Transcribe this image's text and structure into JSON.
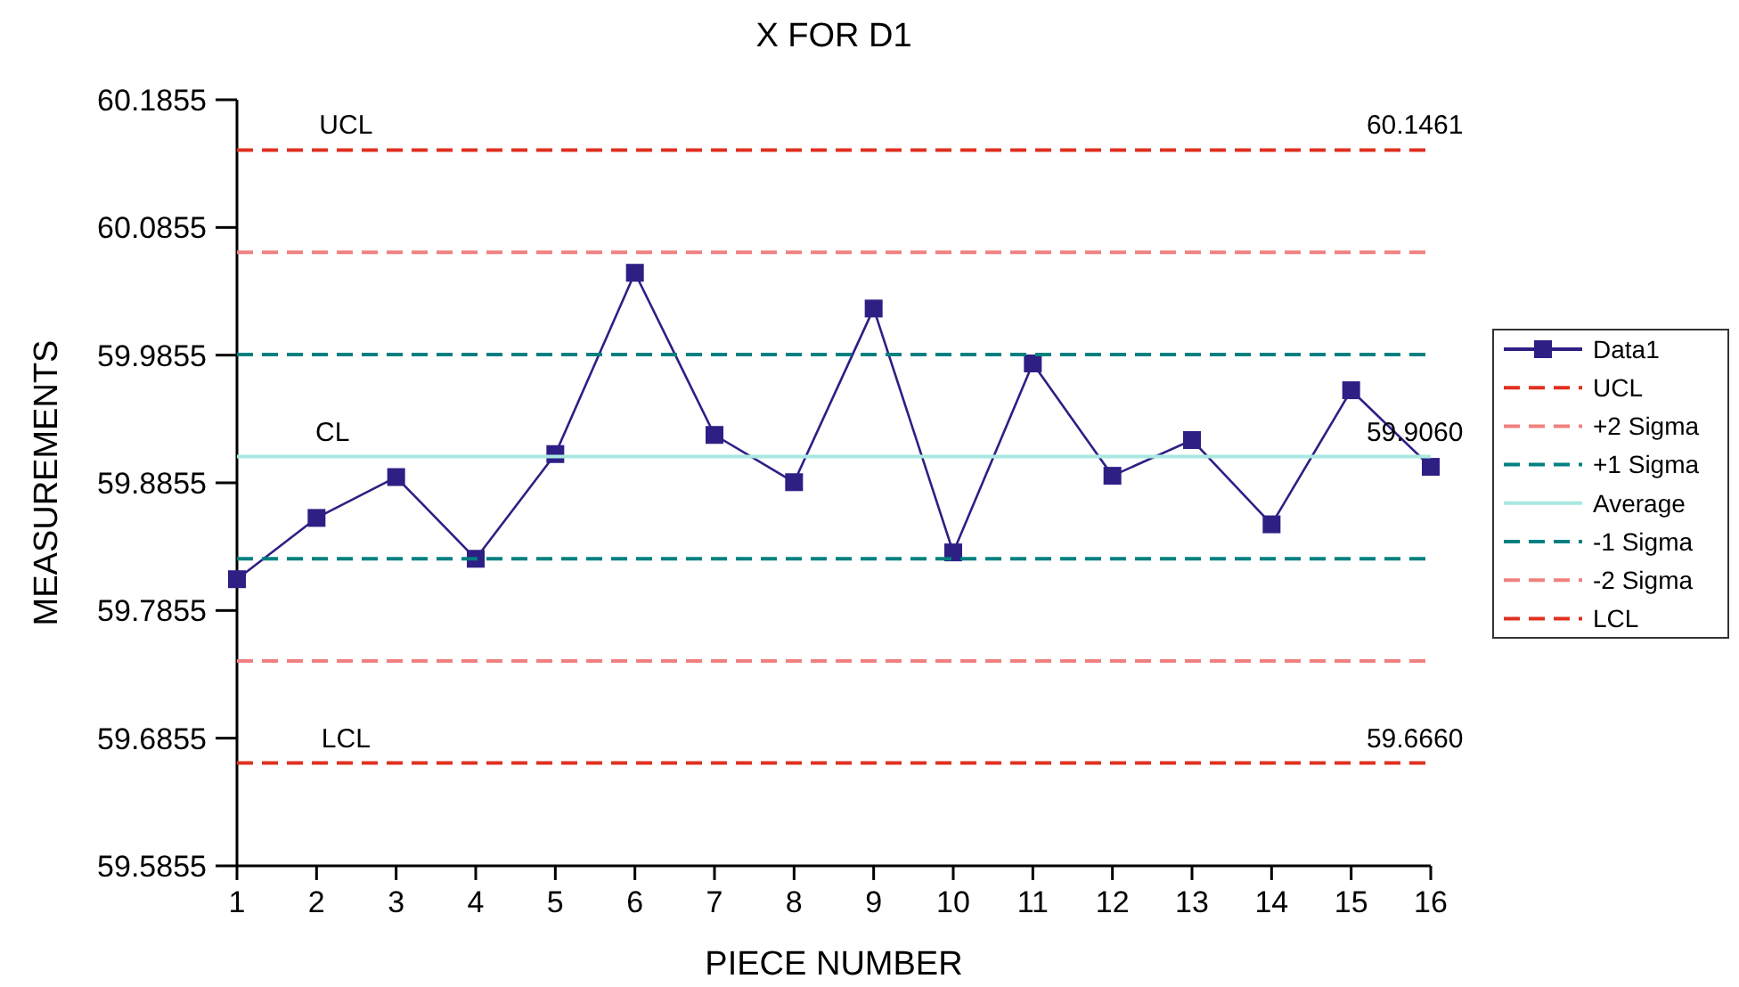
{
  "chart_data": {
    "type": "line",
    "title": "X FOR D1",
    "xlabel": "PIECE NUMBER",
    "ylabel": "MEASUREMENTS",
    "x": [
      1,
      2,
      3,
      4,
      5,
      6,
      7,
      8,
      9,
      10,
      11,
      12,
      13,
      14,
      15,
      16
    ],
    "xlim": [
      1,
      16
    ],
    "xticks": [
      1,
      2,
      3,
      4,
      5,
      6,
      7,
      8,
      9,
      10,
      11,
      12,
      13,
      14,
      15,
      16
    ],
    "ylim": [
      59.5855,
      60.1855
    ],
    "yticks": [
      59.5855,
      59.6855,
      59.7855,
      59.8855,
      59.9855,
      60.0855,
      60.1855
    ],
    "grid": false,
    "legend": "right",
    "series": [
      {
        "name": "Data1",
        "color": "#2e1f85",
        "marker": "square",
        "line_style": "solid",
        "values": [
          59.81,
          59.858,
          59.89,
          59.826,
          59.908,
          60.05,
          59.923,
          59.886,
          60.022,
          59.831,
          59.979,
          59.891,
          59.919,
          59.853,
          59.958,
          59.898
        ]
      },
      {
        "name": "UCL",
        "color": "#e03020",
        "marker": "none",
        "line_style": "dashed",
        "values": [
          60.1461,
          60.1461,
          60.1461,
          60.1461,
          60.1461,
          60.1461,
          60.1461,
          60.1461,
          60.1461,
          60.1461,
          60.1461,
          60.1461,
          60.1461,
          60.1461,
          60.1461,
          60.1461
        ]
      },
      {
        "name": "+2 Sigma",
        "color": "#f08080",
        "marker": "none",
        "line_style": "dashed",
        "values": [
          60.066,
          60.066,
          60.066,
          60.066,
          60.066,
          60.066,
          60.066,
          60.066,
          60.066,
          60.066,
          60.066,
          60.066,
          60.066,
          60.066,
          60.066,
          60.066
        ]
      },
      {
        "name": "+1 Sigma",
        "color": "#008080",
        "marker": "none",
        "line_style": "dashed",
        "values": [
          59.986,
          59.986,
          59.986,
          59.986,
          59.986,
          59.986,
          59.986,
          59.986,
          59.986,
          59.986,
          59.986,
          59.986,
          59.986,
          59.986,
          59.986,
          59.986
        ]
      },
      {
        "name": "Average",
        "color": "#a8e8e0",
        "marker": "none",
        "line_style": "solid",
        "values": [
          59.906,
          59.906,
          59.906,
          59.906,
          59.906,
          59.906,
          59.906,
          59.906,
          59.906,
          59.906,
          59.906,
          59.906,
          59.906,
          59.906,
          59.906,
          59.906
        ]
      },
      {
        "name": "-1 Sigma",
        "color": "#008080",
        "marker": "none",
        "line_style": "dashed",
        "values": [
          59.826,
          59.826,
          59.826,
          59.826,
          59.826,
          59.826,
          59.826,
          59.826,
          59.826,
          59.826,
          59.826,
          59.826,
          59.826,
          59.826,
          59.826,
          59.826
        ]
      },
      {
        "name": "-2 Sigma",
        "color": "#f08080",
        "marker": "none",
        "line_style": "dashed",
        "values": [
          59.746,
          59.746,
          59.746,
          59.746,
          59.746,
          59.746,
          59.746,
          59.746,
          59.746,
          59.746,
          59.746,
          59.746,
          59.746,
          59.746,
          59.746,
          59.746
        ]
      },
      {
        "name": "LCL",
        "color": "#e03020",
        "marker": "none",
        "line_style": "dashed",
        "values": [
          59.666,
          59.666,
          59.666,
          59.666,
          59.666,
          59.666,
          59.666,
          59.666,
          59.666,
          59.666,
          59.666,
          59.666,
          59.666,
          59.666,
          59.666,
          59.666
        ]
      }
    ],
    "annotations": [
      {
        "text": "UCL",
        "x": 2.37,
        "y": 60.1461
      },
      {
        "text": "60.1461",
        "x": 15.8,
        "y": 60.1461
      },
      {
        "text": "CL",
        "x": 2.2,
        "y": 59.906
      },
      {
        "text": "59.9060",
        "x": 15.8,
        "y": 59.906
      },
      {
        "text": "LCL",
        "x": 2.37,
        "y": 59.666
      },
      {
        "text": "59.6660",
        "x": 15.8,
        "y": 59.666
      }
    ]
  }
}
